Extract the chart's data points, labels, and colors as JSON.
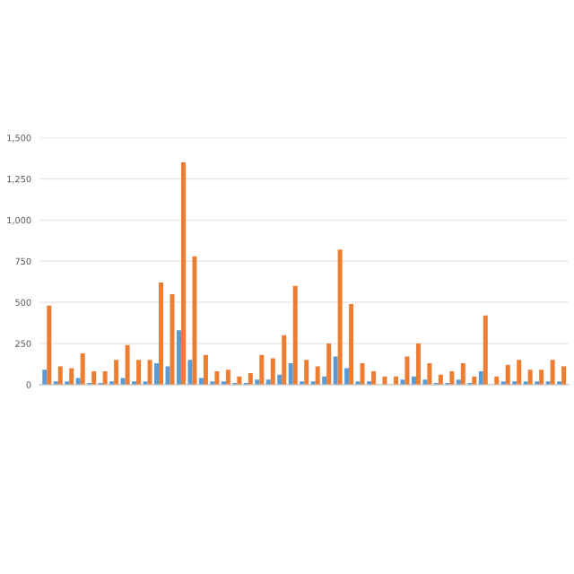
{
  "chart_data": {
    "type": "bar",
    "categories": [
      null,
      null,
      null,
      null,
      null,
      null,
      null,
      null,
      null,
      null,
      null,
      null,
      null,
      null,
      null,
      null,
      null,
      null,
      null,
      null,
      null,
      null,
      null,
      null,
      null,
      null,
      null,
      null,
      null,
      null,
      null,
      null,
      null,
      null,
      null,
      null,
      null,
      null,
      null,
      null,
      null,
      null,
      null,
      null,
      null,
      null,
      null
    ],
    "series": [
      {
        "color": "#5b9bd5",
        "values": [
          90,
          20,
          20,
          40,
          10,
          10,
          20,
          40,
          20,
          20,
          130,
          110,
          330,
          150,
          40,
          20,
          20,
          10,
          10,
          30,
          30,
          60,
          130,
          20,
          20,
          50,
          170,
          100,
          20,
          20,
          0,
          0,
          30,
          50,
          30,
          10,
          10,
          30,
          10,
          80,
          0,
          20,
          20,
          20,
          20,
          20,
          20
        ]
      },
      {
        "color": "#ed7d31",
        "values": [
          480,
          110,
          100,
          190,
          80,
          80,
          150,
          240,
          150,
          150,
          620,
          550,
          1350,
          780,
          180,
          80,
          90,
          50,
          70,
          180,
          160,
          300,
          600,
          150,
          110,
          250,
          820,
          490,
          130,
          80,
          50,
          50,
          170,
          250,
          130,
          60,
          80,
          130,
          50,
          420,
          50,
          120,
          150,
          90,
          90,
          150,
          110
        ]
      }
    ],
    "ylim": [
      0,
      1500
    ],
    "yticks": [
      0,
      250,
      500,
      750,
      {
        "value": 1000,
        "label": "1,000"
      },
      {
        "value": 1250,
        "label": "1,250"
      },
      {
        "value": 1500,
        "label": "1,500"
      }
    ],
    "grid": "y"
  }
}
